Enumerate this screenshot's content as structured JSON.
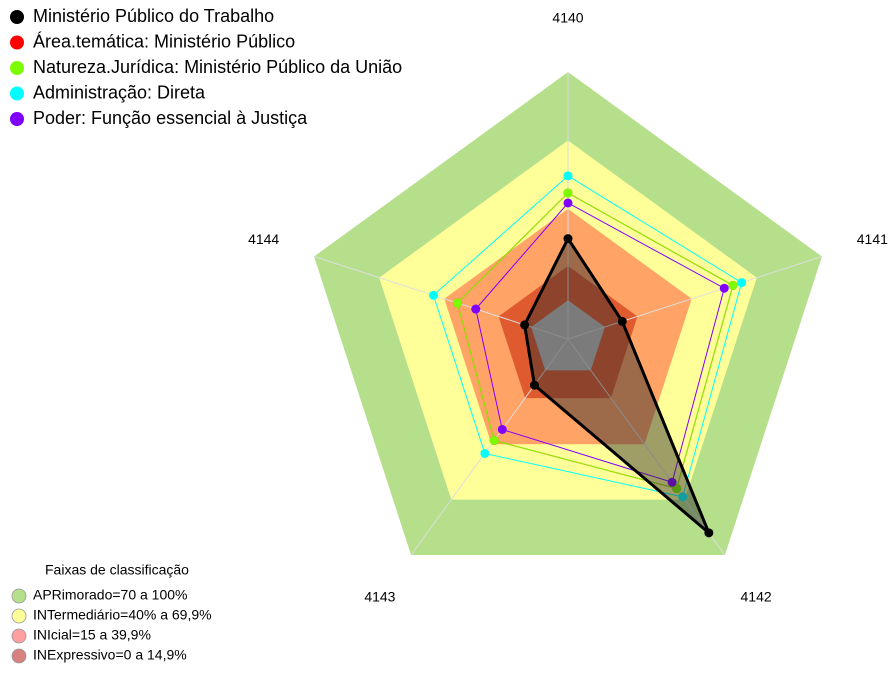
{
  "chart_data": {
    "type": "radar",
    "categories": [
      "4140",
      "4141",
      "4142",
      "4143",
      "4144"
    ],
    "ylim": [
      -17,
      100
    ],
    "axis_color": "#dddddd",
    "center_color": "#c0c0c0",
    "series": [
      {
        "name": "Ministério Público do Trabalho",
        "color": "#000000",
        "fill": "rgba(40,40,40,0.45)",
        "values": [
          27,
          8,
          88,
          8,
          3
        ]
      },
      {
        "name": "Área.temática: Ministério Público",
        "color": "#ff0000",
        "values": [
          47,
          59,
          64,
          38,
          34
        ]
      },
      {
        "name": "Natureza.Jurídica: Ministério Público da União",
        "color": "#7cfc00",
        "values": [
          47,
          59,
          64,
          38,
          34
        ]
      },
      {
        "name": "Administração: Direta",
        "color": "#00ffff",
        "values": [
          54.5,
          63,
          68.5,
          45,
          45
        ]
      },
      {
        "name": "Poder: Função essencial à Justiça",
        "color": "#8000ff",
        "values": [
          42.6,
          55,
          60.6,
          32,
          25.5
        ]
      }
    ],
    "bands_title": "Faixas de classificação",
    "bands": [
      {
        "label": "APRimorado=70 a 100%",
        "from": 70,
        "to": 100,
        "color": "#b5df8a",
        "legend_color": "#b5df8a"
      },
      {
        "label": "INTermediário=40% a 69,9%",
        "from": 40,
        "to": 70,
        "color": "#ffff99",
        "legend_color": "#ffff99"
      },
      {
        "label": "INIcial=15 a 39,9%",
        "from": 15,
        "to": 40,
        "color": "#ffa366",
        "legend_color": "#ff9f9f"
      },
      {
        "label": "INExpressivo=0 a 14,9%",
        "from": 0,
        "to": 15,
        "color": "#e05a30",
        "legend_color": "#d98080"
      }
    ]
  }
}
